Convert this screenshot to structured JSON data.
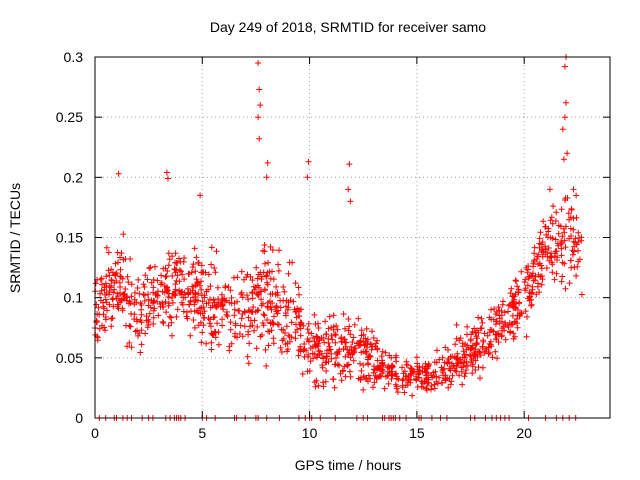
{
  "chart_data": {
    "type": "scatter",
    "title": "Day 249 of 2018, SRMTID for receiver samo",
    "xlabel": "GPS time / hours",
    "ylabel": "SRMTID / TECUs",
    "xlim": [
      0,
      24
    ],
    "ylim": [
      0,
      0.3
    ],
    "x_ticks": [
      0,
      5,
      10,
      15,
      20
    ],
    "x_tick_labels": [
      "0",
      "5",
      "10",
      "15",
      "20"
    ],
    "y_ticks": [
      0,
      0.05,
      0.1,
      0.15,
      0.2,
      0.25,
      0.3
    ],
    "y_tick_labels": [
      "0",
      "0.05",
      "0.1",
      "0.15",
      "0.2",
      "0.25",
      "0.3"
    ],
    "grid": true,
    "marker": "+",
    "series_color": "#ff0000",
    "trend_profile": [
      {
        "t": 0.0,
        "mean": 0.09,
        "spread": 0.03
      },
      {
        "t": 1.0,
        "mean": 0.11,
        "spread": 0.035
      },
      {
        "t": 2.0,
        "mean": 0.09,
        "spread": 0.03
      },
      {
        "t": 3.0,
        "mean": 0.1,
        "spread": 0.03
      },
      {
        "t": 4.0,
        "mean": 0.11,
        "spread": 0.025
      },
      {
        "t": 5.0,
        "mean": 0.1,
        "spread": 0.04
      },
      {
        "t": 6.0,
        "mean": 0.09,
        "spread": 0.035
      },
      {
        "t": 7.0,
        "mean": 0.09,
        "spread": 0.035
      },
      {
        "t": 8.0,
        "mean": 0.1,
        "spread": 0.045
      },
      {
        "t": 9.0,
        "mean": 0.085,
        "spread": 0.035
      },
      {
        "t": 10.0,
        "mean": 0.06,
        "spread": 0.03
      },
      {
        "t": 11.0,
        "mean": 0.055,
        "spread": 0.025
      },
      {
        "t": 12.0,
        "mean": 0.06,
        "spread": 0.03
      },
      {
        "t": 13.0,
        "mean": 0.05,
        "spread": 0.02
      },
      {
        "t": 14.0,
        "mean": 0.035,
        "spread": 0.015
      },
      {
        "t": 15.0,
        "mean": 0.035,
        "spread": 0.015
      },
      {
        "t": 16.0,
        "mean": 0.035,
        "spread": 0.015
      },
      {
        "t": 17.0,
        "mean": 0.05,
        "spread": 0.02
      },
      {
        "t": 18.0,
        "mean": 0.06,
        "spread": 0.025
      },
      {
        "t": 19.0,
        "mean": 0.08,
        "spread": 0.025
      },
      {
        "t": 20.0,
        "mean": 0.1,
        "spread": 0.03
      },
      {
        "t": 21.0,
        "mean": 0.14,
        "spread": 0.035
      },
      {
        "t": 22.0,
        "mean": 0.15,
        "spread": 0.045
      },
      {
        "t": 22.7,
        "mean": 0.14,
        "spread": 0.03
      }
    ],
    "sample_count": 1400,
    "spikes": [
      {
        "x": 1.1,
        "y": 0.203
      },
      {
        "x": 3.35,
        "y": 0.204
      },
      {
        "x": 3.4,
        "y": 0.199
      },
      {
        "x": 4.9,
        "y": 0.185
      },
      {
        "x": 7.6,
        "y": 0.295
      },
      {
        "x": 7.65,
        "y": 0.273
      },
      {
        "x": 7.7,
        "y": 0.26
      },
      {
        "x": 7.6,
        "y": 0.25
      },
      {
        "x": 7.65,
        "y": 0.232
      },
      {
        "x": 8.05,
        "y": 0.212
      },
      {
        "x": 8.0,
        "y": 0.2
      },
      {
        "x": 9.95,
        "y": 0.213
      },
      {
        "x": 9.9,
        "y": 0.2
      },
      {
        "x": 11.85,
        "y": 0.211
      },
      {
        "x": 11.8,
        "y": 0.19
      },
      {
        "x": 11.9,
        "y": 0.18
      },
      {
        "x": 21.95,
        "y": 0.3
      },
      {
        "x": 21.9,
        "y": 0.292
      },
      {
        "x": 21.95,
        "y": 0.262
      },
      {
        "x": 21.9,
        "y": 0.25
      },
      {
        "x": 21.8,
        "y": 0.24
      },
      {
        "x": 22.0,
        "y": 0.22
      },
      {
        "x": 21.85,
        "y": 0.215
      },
      {
        "x": 21.2,
        "y": 0.19
      },
      {
        "x": 22.3,
        "y": 0.19
      }
    ],
    "zero_points": [
      0.2,
      0.5,
      0.9,
      1.0,
      1.3,
      1.5,
      1.7,
      2.2,
      2.5,
      2.7,
      3.3,
      3.5,
      3.7,
      3.8,
      3.9,
      4.0,
      4.2,
      5.0,
      5.2,
      5.6,
      6.5,
      6.6,
      7.0,
      7.5,
      7.6,
      8.0,
      8.6,
      9.5,
      9.8,
      10.0,
      10.1,
      10.5,
      11.2,
      12.2,
      12.5,
      12.7,
      13.4,
      13.5,
      13.7,
      13.8,
      13.9,
      14.0,
      14.2,
      14.5,
      15.1,
      15.2,
      15.7,
      16.1,
      16.4,
      17.5,
      17.7,
      18.2,
      18.5,
      18.7,
      18.9,
      19.1,
      19.3,
      20.2,
      21.0,
      21.5,
      21.8,
      22.1,
      22.4
    ]
  }
}
